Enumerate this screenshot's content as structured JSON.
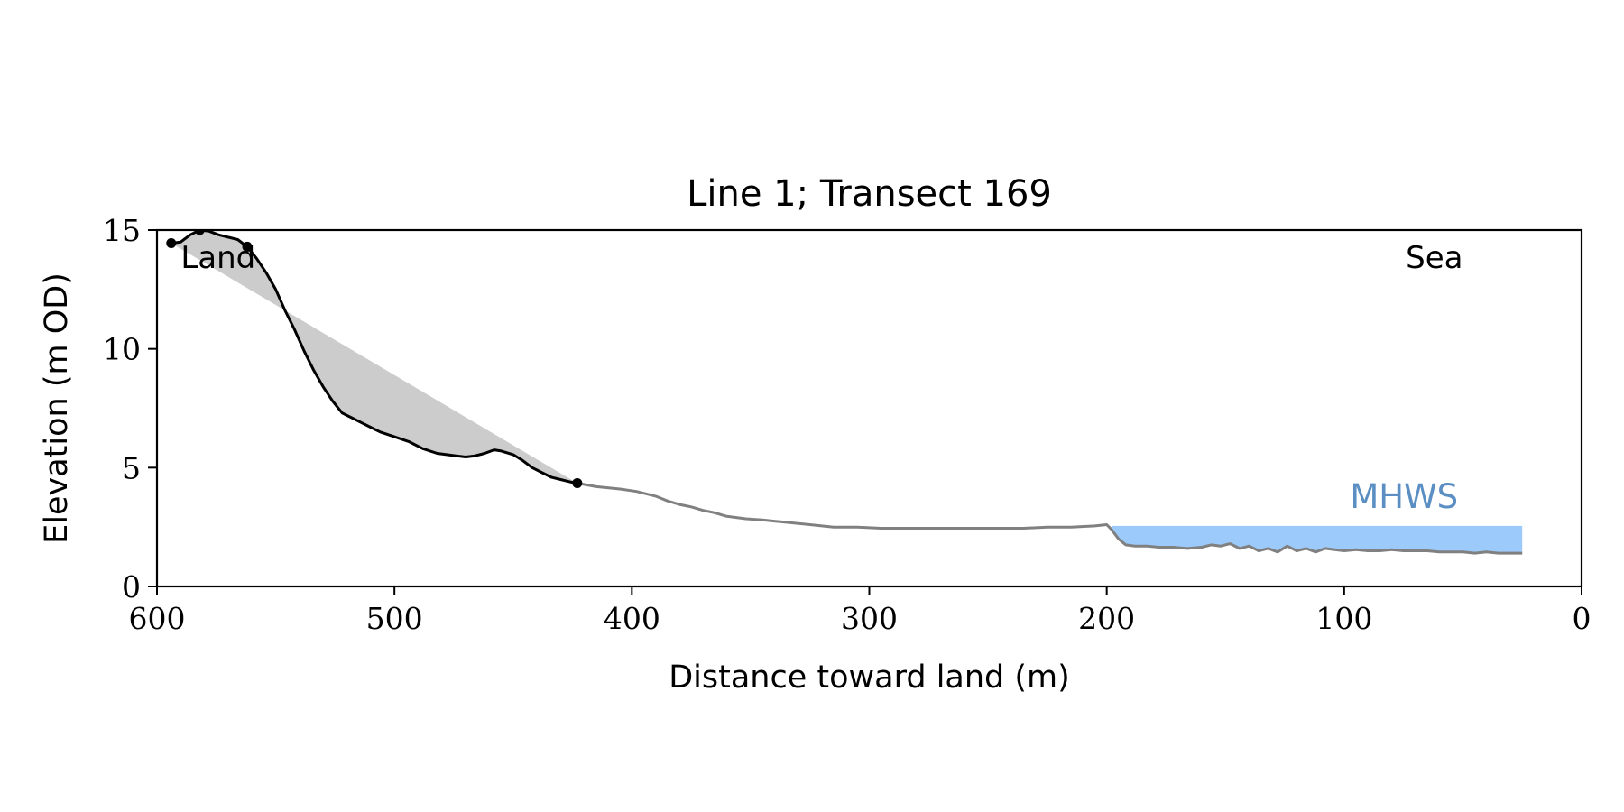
{
  "chart_data": {
    "type": "line",
    "title": "Line 1; Transect 169",
    "xlabel": "Distance toward land (m)",
    "ylabel": "Elevation (m OD)",
    "xlim": [
      600,
      0
    ],
    "ylim": [
      0,
      15
    ],
    "x_ticks": [
      600,
      500,
      400,
      300,
      200,
      100,
      0
    ],
    "y_ticks": [
      0,
      5,
      10,
      15
    ],
    "grid": false,
    "colors": {
      "cliff_profile": "#000000",
      "beach_profile": "#808080",
      "cliff_fill": "#cccccc",
      "mhws_fill": "#9ccbfb",
      "mhws_label": "#5b8fc4"
    },
    "annotations": [
      {
        "text": "Land",
        "x": 590,
        "y": 13.4
      },
      {
        "text": "Sea",
        "x": 62,
        "y": 13.4
      },
      {
        "text": "MHWS",
        "x": 52,
        "y": 3.3
      }
    ],
    "series": [
      {
        "role": "cliff",
        "x": [
          594,
          590,
          586,
          582,
          578,
          574,
          570,
          566,
          562,
          558,
          554,
          550,
          546,
          542,
          538,
          534,
          530,
          526,
          522,
          518,
          514,
          510,
          506,
          500,
          494,
          488,
          482,
          478,
          474,
          470,
          466,
          462,
          458,
          455,
          450,
          446,
          442,
          438,
          434,
          430,
          426,
          423
        ],
        "y": [
          14.45,
          14.5,
          14.8,
          15.0,
          14.95,
          14.8,
          14.7,
          14.6,
          14.3,
          13.8,
          13.2,
          12.5,
          11.6,
          10.8,
          9.9,
          9.1,
          8.4,
          7.8,
          7.3,
          7.1,
          6.9,
          6.7,
          6.5,
          6.3,
          6.1,
          5.8,
          5.6,
          5.55,
          5.5,
          5.45,
          5.5,
          5.6,
          5.75,
          5.7,
          5.55,
          5.3,
          5.0,
          4.8,
          4.6,
          4.5,
          4.4,
          4.35
        ]
      },
      {
        "role": "beach",
        "x": [
          423,
          415,
          405,
          398,
          390,
          385,
          380,
          375,
          370,
          365,
          360,
          352,
          345,
          340,
          335,
          325,
          315,
          305,
          295,
          285,
          275,
          265,
          255,
          245,
          235,
          225,
          215,
          205,
          200,
          198,
          195,
          192,
          188,
          183,
          178,
          172,
          166,
          160,
          156,
          152,
          148,
          144,
          140,
          136,
          132,
          128,
          124,
          120,
          116,
          112,
          108,
          104,
          100,
          95,
          90,
          85,
          80,
          75,
          70,
          65,
          60,
          55,
          50,
          45,
          40,
          35,
          30,
          25
        ],
        "y": [
          4.35,
          4.2,
          4.1,
          4.0,
          3.8,
          3.6,
          3.45,
          3.35,
          3.2,
          3.1,
          2.95,
          2.85,
          2.8,
          2.75,
          2.7,
          2.6,
          2.5,
          2.5,
          2.45,
          2.45,
          2.45,
          2.45,
          2.45,
          2.45,
          2.45,
          2.5,
          2.5,
          2.55,
          2.6,
          2.4,
          2.0,
          1.75,
          1.7,
          1.7,
          1.65,
          1.65,
          1.6,
          1.65,
          1.75,
          1.7,
          1.8,
          1.6,
          1.7,
          1.5,
          1.6,
          1.45,
          1.7,
          1.5,
          1.6,
          1.45,
          1.6,
          1.55,
          1.5,
          1.55,
          1.5,
          1.5,
          1.55,
          1.5,
          1.5,
          1.5,
          1.45,
          1.45,
          1.45,
          1.4,
          1.45,
          1.4,
          1.4,
          1.4
        ]
      }
    ],
    "cliff_chord": {
      "x": [
        594,
        423
      ],
      "y": [
        14.45,
        4.35
      ]
    },
    "markers": [
      {
        "x": 594,
        "y": 14.45
      },
      {
        "x": 582,
        "y": 15.0
      },
      {
        "x": 562,
        "y": 14.3
      },
      {
        "x": 423,
        "y": 4.35
      }
    ],
    "mhws_band": {
      "x_start": 198,
      "x_end": 25,
      "y_top": 2.55
    }
  }
}
